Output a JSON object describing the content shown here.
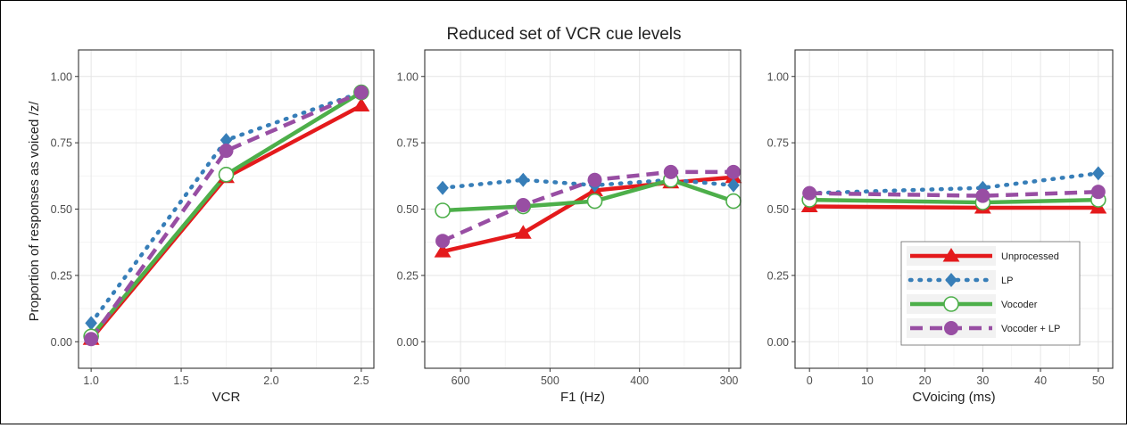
{
  "title": "Reduced set of VCR cue levels",
  "ylabel": "Proportion of responses as voiced /z/",
  "colors": {
    "Unprocessed": "#e41a1c",
    "LP": "#377eb8",
    "Vocoder": "#4daf4a",
    "Vocoder + LP": "#984ea3"
  },
  "legend": {
    "placement": "inside-right of third panel",
    "entries": [
      "Unprocessed",
      "LP",
      "Vocoder",
      "Vocoder + LP"
    ]
  },
  "chart_data": [
    {
      "type": "line",
      "xlabel": "VCR",
      "xlim": [
        0.93,
        2.57
      ],
      "x_reversed": false,
      "xticks": [
        1.0,
        1.5,
        2.0,
        2.5
      ],
      "xtick_labels": [
        "1.0",
        "1.5",
        "2.0",
        "2.5"
      ],
      "ylim": [
        -0.1,
        1.1
      ],
      "yticks": [
        0,
        0.25,
        0.5,
        0.75,
        1.0
      ],
      "ytick_labels": [
        "0.00",
        "0.25",
        "0.50",
        "0.75",
        "1.00"
      ],
      "grid": true,
      "x": [
        1.0,
        1.75,
        2.5
      ],
      "series": [
        {
          "name": "Unprocessed",
          "values": [
            0.01,
            0.62,
            0.89
          ]
        },
        {
          "name": "LP",
          "values": [
            0.07,
            0.76,
            0.94
          ]
        },
        {
          "name": "Vocoder",
          "values": [
            0.02,
            0.63,
            0.94
          ]
        },
        {
          "name": "Vocoder + LP",
          "values": [
            0.01,
            0.72,
            0.94
          ]
        }
      ]
    },
    {
      "type": "line",
      "xlabel": "F1 (Hz)",
      "xlim": [
        640,
        287
      ],
      "x_reversed": true,
      "xticks": [
        600,
        500,
        400,
        300
      ],
      "xtick_labels": [
        "600",
        "500",
        "400",
        "300"
      ],
      "ylim": [
        -0.1,
        1.1
      ],
      "yticks": [
        0,
        0.25,
        0.5,
        0.75,
        1.0
      ],
      "ytick_labels": [
        "0.00",
        "0.25",
        "0.50",
        "0.75",
        "1.00"
      ],
      "grid": true,
      "x": [
        620,
        530,
        450,
        365,
        295
      ],
      "series": [
        {
          "name": "Unprocessed",
          "values": [
            0.34,
            0.41,
            0.57,
            0.6,
            0.62
          ]
        },
        {
          "name": "LP",
          "values": [
            0.58,
            0.61,
            0.59,
            0.61,
            0.59
          ]
        },
        {
          "name": "Vocoder",
          "values": [
            0.495,
            0.51,
            0.53,
            0.61,
            0.53
          ]
        },
        {
          "name": "Vocoder + LP",
          "values": [
            0.38,
            0.515,
            0.61,
            0.64,
            0.64
          ]
        }
      ]
    },
    {
      "type": "line",
      "xlabel": "CVoicing (ms)",
      "xlim": [
        -2.5,
        52.5
      ],
      "x_reversed": false,
      "xticks": [
        0,
        10,
        20,
        30,
        40,
        50
      ],
      "xtick_labels": [
        "0",
        "10",
        "20",
        "30",
        "40",
        "50"
      ],
      "ylim": [
        -0.1,
        1.1
      ],
      "yticks": [
        0,
        0.25,
        0.5,
        0.75,
        1.0
      ],
      "ytick_labels": [
        "0.00",
        "0.25",
        "0.50",
        "0.75",
        "1.00"
      ],
      "grid": true,
      "x": [
        0,
        30,
        50
      ],
      "series": [
        {
          "name": "Unprocessed",
          "values": [
            0.51,
            0.505,
            0.505
          ]
        },
        {
          "name": "LP",
          "values": [
            0.56,
            0.58,
            0.635
          ]
        },
        {
          "name": "Vocoder",
          "values": [
            0.535,
            0.525,
            0.535
          ]
        },
        {
          "name": "Vocoder + LP",
          "values": [
            0.56,
            0.55,
            0.565
          ]
        }
      ]
    }
  ]
}
